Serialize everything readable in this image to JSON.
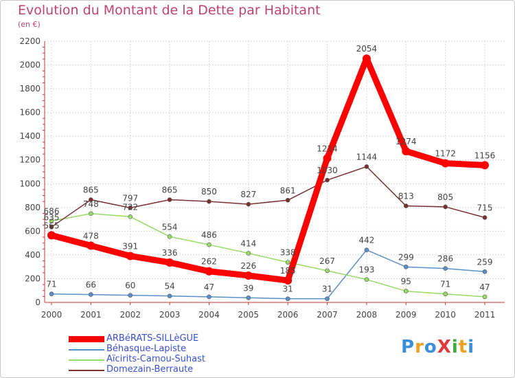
{
  "title": "Evolution du Montant de la Dette par Habitant",
  "subtitle": "(en €)",
  "logo": {
    "text": "ProXiti",
    "colors": [
      "#3a8fd8",
      "#f0a020",
      "#3a8fd8",
      "#e03a3a",
      "#3aaa3a",
      "#f0a020",
      "#3a8fd8"
    ]
  },
  "chart_data": {
    "type": "line",
    "x": [
      "2000",
      "2001",
      "2002",
      "2003",
      "2004",
      "2005",
      "2006",
      "2007",
      "2008",
      "2009",
      "2010",
      "2011"
    ],
    "ylim": [
      0,
      2200
    ],
    "yticks": [
      "0",
      "200",
      "400",
      "600",
      "800",
      "1000",
      "1200",
      "1400",
      "1600",
      "1800",
      "2000",
      "2200"
    ],
    "grid": true,
    "legend_position": "bottom",
    "series": [
      {
        "name": "Béhasque-Lapiste",
        "color": "#5b8fc7",
        "values": [
          71,
          66,
          60,
          54,
          47,
          39,
          31,
          31,
          442,
          299,
          286,
          259
        ],
        "labels": [
          "71",
          "66",
          "60",
          "54",
          "47",
          "39",
          "31",
          "31",
          "442",
          "299",
          "286",
          "259"
        ]
      },
      {
        "name": "Aïcirits-Camou-Suhast",
        "color": "#99d966",
        "values": [
          686,
          748,
          722,
          554,
          486,
          414,
          338,
          267,
          193,
          95,
          71,
          47
        ],
        "labels": [
          "686",
          "748",
          "722",
          "554",
          "486",
          "414",
          "338",
          "267",
          "193",
          "95",
          "71",
          "47"
        ]
      },
      {
        "name": "Domezain-Berraute",
        "color": "#7a3030",
        "values": [
          635,
          865,
          797,
          865,
          850,
          827,
          861,
          1030,
          1144,
          813,
          805,
          715
        ],
        "labels": [
          "635",
          "865",
          "797",
          "865",
          "850",
          "827",
          "861",
          "1030",
          "1144",
          "813",
          "805",
          "715"
        ]
      },
      {
        "name": "ARBéRATS-SILLèGUE",
        "color": "#ff0000",
        "values": [
          565,
          478,
          391,
          336,
          262,
          226,
          185,
          1214,
          2054,
          1274,
          1172,
          1156
        ],
        "labels": [
          "565",
          "478",
          "391",
          "336",
          "262",
          "226",
          "185",
          "1214",
          "2054",
          "1274",
          "1172",
          "1156"
        ]
      }
    ],
    "legend": [
      "ARBéRATS-SILLèGUE",
      "Béhasque-Lapiste",
      "Aïcirits-Camou-Suhast",
      "Domezain-Berraute"
    ]
  }
}
